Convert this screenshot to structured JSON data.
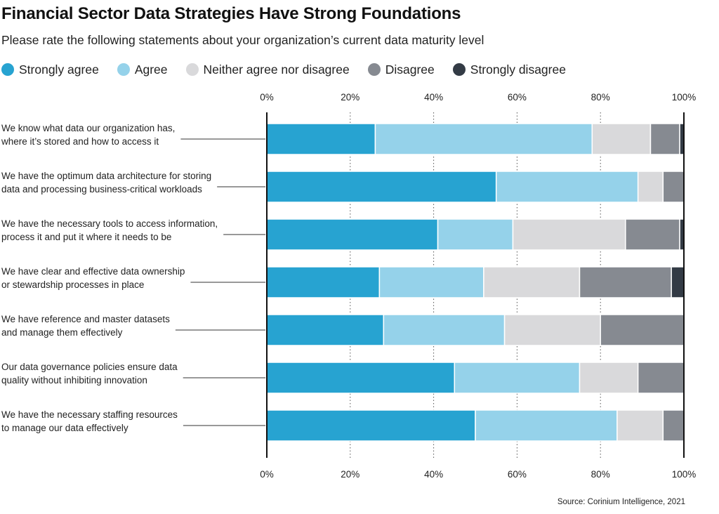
{
  "title": "Financial Sector Data Strategies Have Strong Foundations",
  "subtitle": "Please rate the following statements about your organization’s current data maturity level",
  "source": "Source: Corinium Intelligence, 2021",
  "colors": {
    "strongly_agree": "#27a3d1",
    "agree": "#95d2ea",
    "neither": "#d9d9db",
    "disagree": "#868a91",
    "strongly_disagree": "#333b45"
  },
  "chart_data": {
    "type": "bar",
    "orientation": "horizontal",
    "stacked": true,
    "xlim": [
      0,
      100
    ],
    "xticks": [
      "0%",
      "20%",
      "40%",
      "60%",
      "80%",
      "100%"
    ],
    "grid": true,
    "legend_position": "top",
    "categories": [
      [
        "We know what data our organization has,",
        "where it’s stored and how to access it"
      ],
      [
        "We have the optimum data architecture for storing",
        "data and processing business-critical workloads"
      ],
      [
        "We have the necessary tools to access information,",
        "process it and put it where it needs to be"
      ],
      [
        "We have clear and effective data ownership",
        "or stewardship processes in place"
      ],
      [
        "We have reference and master datasets",
        "and manage them effectively"
      ],
      [
        "Our data governance policies ensure data",
        "quality without inhibiting innovation"
      ],
      [
        "We have the necessary staffing resources",
        "to manage our data effectively"
      ]
    ],
    "series": [
      {
        "name": "Strongly agree",
        "color": "#27a3d1",
        "values": [
          26,
          55,
          41,
          27,
          28,
          45,
          50
        ]
      },
      {
        "name": "Agree",
        "color": "#95d2ea",
        "values": [
          52,
          34,
          18,
          25,
          29,
          30,
          34
        ]
      },
      {
        "name": "Neither agree nor disagree",
        "color": "#d9d9db",
        "values": [
          14,
          6,
          27,
          23,
          23,
          14,
          11
        ]
      },
      {
        "name": "Disagree",
        "color": "#868a91",
        "values": [
          7,
          5,
          13,
          22,
          20,
          11,
          5
        ]
      },
      {
        "name": "Strongly disagree",
        "color": "#333b45",
        "values": [
          1,
          0,
          1,
          3,
          0,
          0,
          0
        ]
      }
    ]
  }
}
